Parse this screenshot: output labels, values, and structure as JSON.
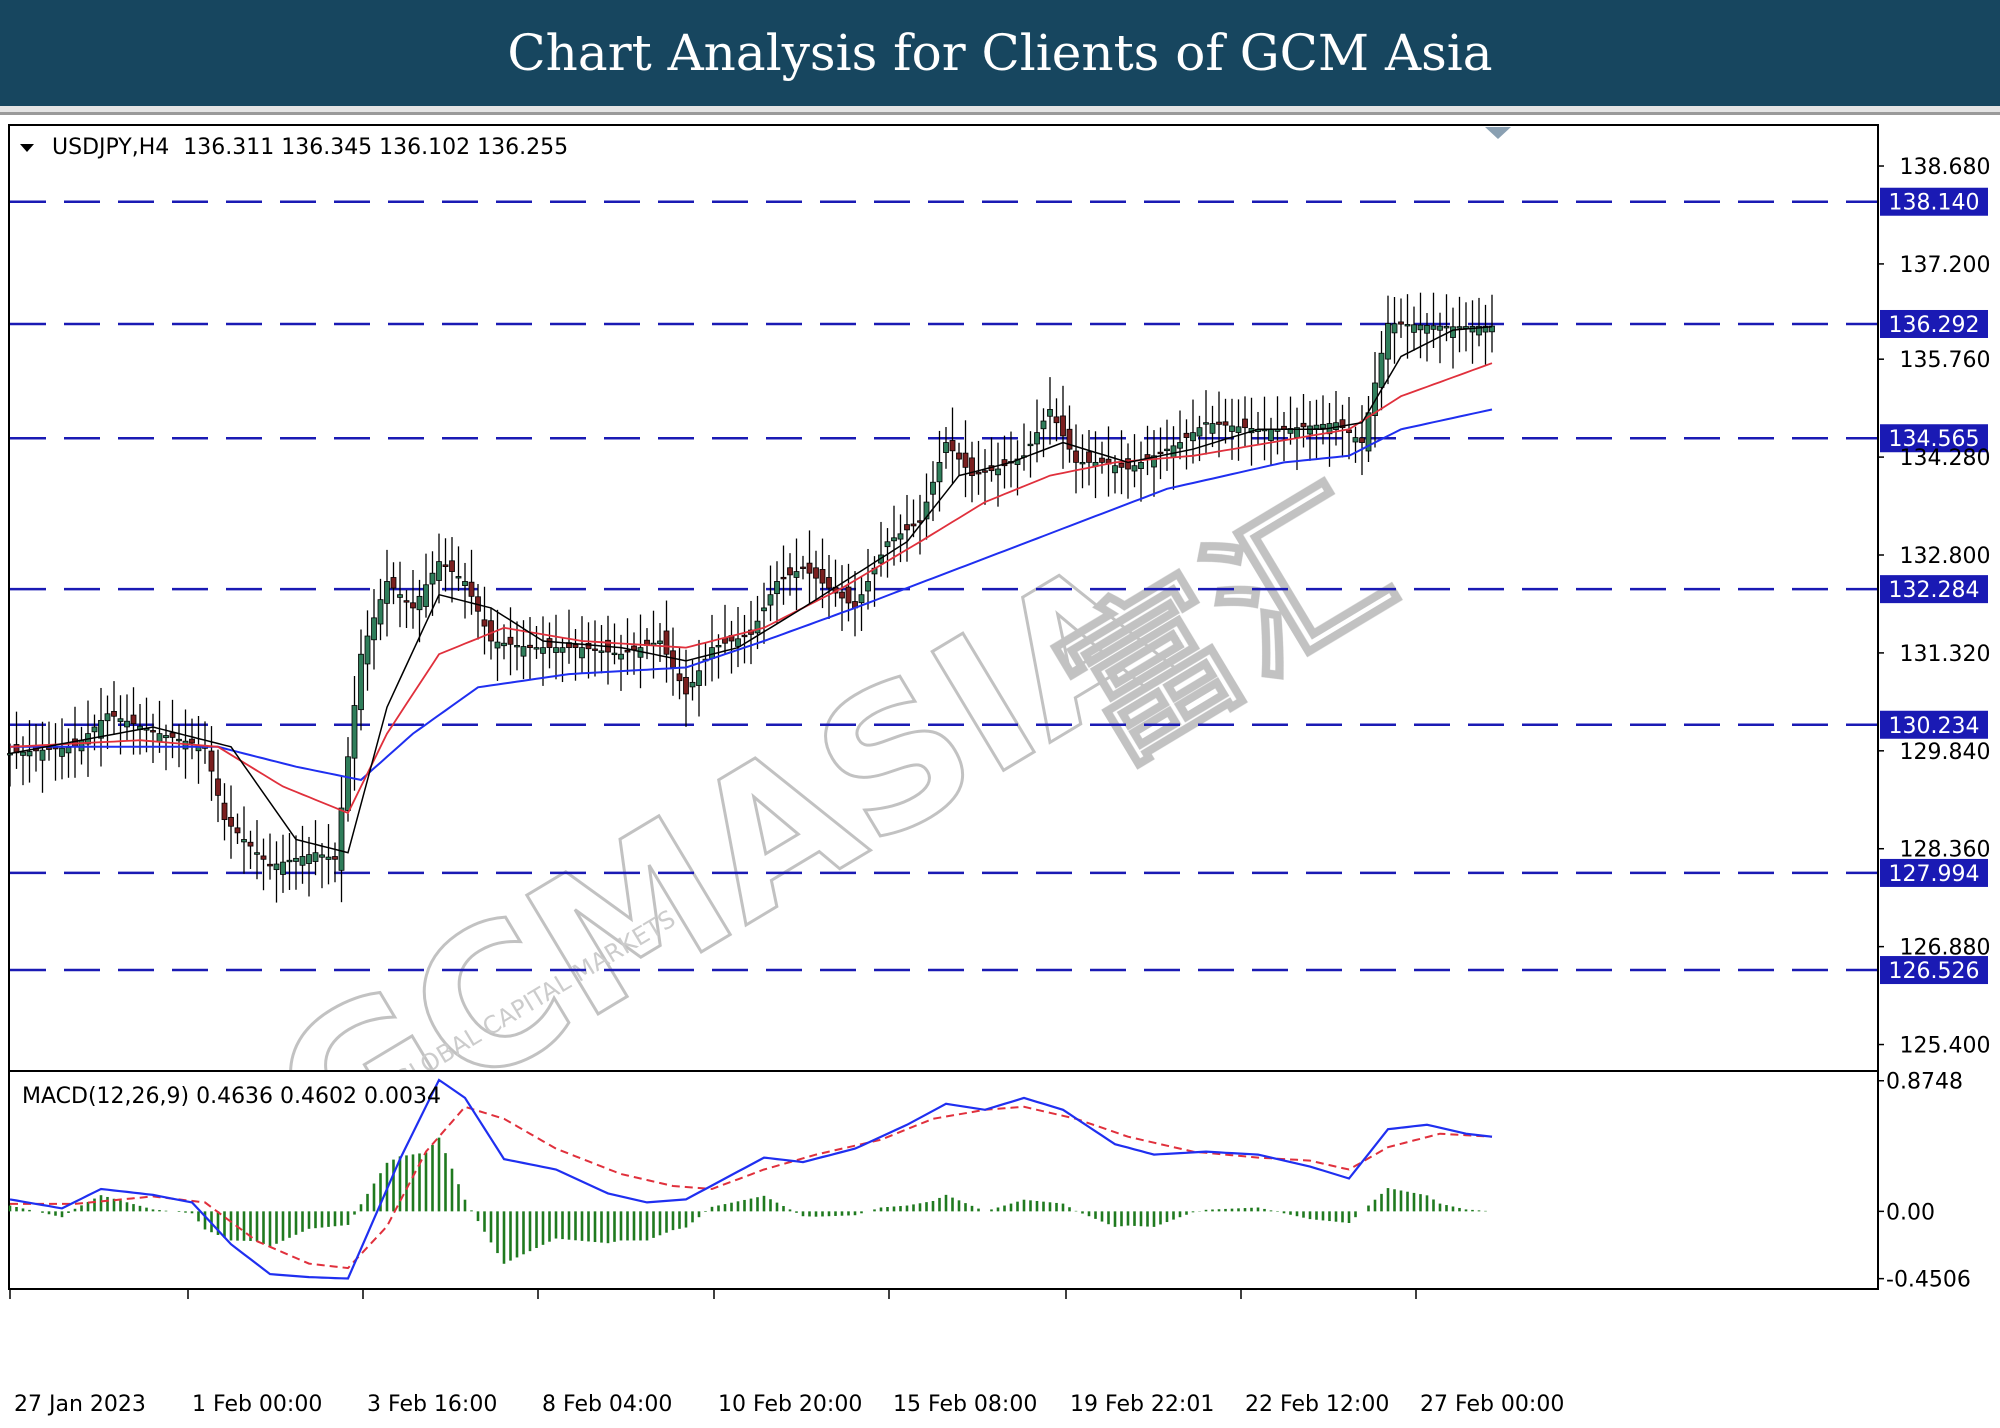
{
  "header": {
    "title": "Chart Analysis for Clients of GCM Asia"
  },
  "watermark": {
    "brand": "GCMASIA",
    "brand_cn": "富汇",
    "tagline": "GLOBAL CAPITAL MARKETS"
  },
  "chart_data": [
    {
      "type": "candlestick",
      "symbol_line": "USDJPY,H4  136.311 136.345 136.102 136.255",
      "ylim": [
        125.0,
        139.3
      ],
      "y_ticks": [
        138.68,
        137.2,
        135.76,
        134.28,
        132.8,
        131.32,
        129.84,
        128.36,
        126.88,
        125.4
      ],
      "y_tick_labels": [
        "138.680",
        "137.200",
        "135.760",
        "134.280",
        "132.800",
        "131.320",
        "129.840",
        "128.360",
        "126.880",
        "125.400"
      ],
      "x_tick_labels": [
        "27 Jan 2023",
        "1 Feb 00:00",
        "3 Feb 16:00",
        "8 Feb 04:00",
        "10 Feb 20:00",
        "15 Feb 08:00",
        "19 Feb 22:01",
        "22 Feb 12:00",
        "27 Feb 00:00"
      ],
      "horizontal_levels": [
        {
          "value": 138.14,
          "label": "138.140"
        },
        {
          "value": 136.292,
          "label": "136.292"
        },
        {
          "value": 134.565,
          "label": "134.565"
        },
        {
          "value": 132.284,
          "label": "132.284"
        },
        {
          "value": 130.234,
          "label": "130.234"
        },
        {
          "value": 127.994,
          "label": "127.994"
        },
        {
          "value": 126.526,
          "label": "126.526"
        }
      ],
      "price_keypoints": [
        [
          0,
          129.8
        ],
        [
          10,
          129.9
        ],
        [
          15,
          130.4
        ],
        [
          23,
          130.1
        ],
        [
          30,
          129.9
        ],
        [
          33,
          128.8
        ],
        [
          40,
          128.1
        ],
        [
          47,
          128.3
        ],
        [
          50,
          128.2
        ],
        [
          54,
          131.3
        ],
        [
          58,
          132.4
        ],
        [
          62,
          132.0
        ],
        [
          66,
          132.7
        ],
        [
          70,
          132.4
        ],
        [
          74,
          131.5
        ],
        [
          80,
          131.4
        ],
        [
          88,
          131.4
        ],
        [
          94,
          131.3
        ],
        [
          100,
          131.5
        ],
        [
          104,
          130.7
        ],
        [
          108,
          131.4
        ],
        [
          114,
          131.6
        ],
        [
          118,
          132.4
        ],
        [
          122,
          132.6
        ],
        [
          126,
          132.3
        ],
        [
          130,
          132.0
        ],
        [
          135,
          133.0
        ],
        [
          140,
          133.3
        ],
        [
          144,
          134.5
        ],
        [
          148,
          134.0
        ],
        [
          152,
          134.1
        ],
        [
          156,
          134.3
        ],
        [
          160,
          135.0
        ],
        [
          164,
          134.2
        ],
        [
          168,
          134.2
        ],
        [
          172,
          134.1
        ],
        [
          180,
          134.5
        ],
        [
          184,
          134.8
        ],
        [
          192,
          134.7
        ],
        [
          196,
          134.7
        ],
        [
          204,
          134.8
        ],
        [
          208,
          134.5
        ],
        [
          212,
          136.3
        ],
        [
          222,
          136.25
        ],
        [
          228,
          136.26
        ]
      ],
      "sma_fast_keypoints": [
        [
          0,
          129.8
        ],
        [
          22,
          130.2
        ],
        [
          34,
          129.9
        ],
        [
          44,
          128.5
        ],
        [
          52,
          128.3
        ],
        [
          58,
          130.5
        ],
        [
          66,
          132.2
        ],
        [
          74,
          132.0
        ],
        [
          82,
          131.5
        ],
        [
          94,
          131.4
        ],
        [
          104,
          131.2
        ],
        [
          112,
          131.4
        ],
        [
          122,
          132.0
        ],
        [
          130,
          132.5
        ],
        [
          138,
          133.0
        ],
        [
          146,
          134.0
        ],
        [
          154,
          134.2
        ],
        [
          162,
          134.5
        ],
        [
          172,
          134.2
        ],
        [
          182,
          134.4
        ],
        [
          192,
          134.7
        ],
        [
          202,
          134.7
        ],
        [
          208,
          134.8
        ],
        [
          214,
          135.8
        ],
        [
          222,
          136.2
        ],
        [
          228,
          136.25
        ]
      ],
      "sma_mid_keypoints": [
        [
          0,
          129.9
        ],
        [
          20,
          130.0
        ],
        [
          32,
          129.9
        ],
        [
          42,
          129.3
        ],
        [
          52,
          128.9
        ],
        [
          58,
          130.1
        ],
        [
          66,
          131.3
        ],
        [
          76,
          131.7
        ],
        [
          88,
          131.5
        ],
        [
          104,
          131.4
        ],
        [
          116,
          131.7
        ],
        [
          128,
          132.3
        ],
        [
          140,
          133.0
        ],
        [
          150,
          133.6
        ],
        [
          160,
          134.0
        ],
        [
          170,
          134.2
        ],
        [
          182,
          134.3
        ],
        [
          194,
          134.5
        ],
        [
          206,
          134.7
        ],
        [
          214,
          135.2
        ],
        [
          228,
          135.7
        ]
      ],
      "sma_slow_keypoints": [
        [
          0,
          129.9
        ],
        [
          20,
          129.9
        ],
        [
          32,
          129.9
        ],
        [
          44,
          129.6
        ],
        [
          54,
          129.4
        ],
        [
          62,
          130.1
        ],
        [
          72,
          130.8
        ],
        [
          86,
          131.0
        ],
        [
          104,
          131.1
        ],
        [
          116,
          131.5
        ],
        [
          130,
          132.0
        ],
        [
          146,
          132.6
        ],
        [
          162,
          133.2
        ],
        [
          178,
          133.8
        ],
        [
          196,
          134.2
        ],
        [
          206,
          134.3
        ],
        [
          214,
          134.7
        ],
        [
          228,
          135.0
        ]
      ],
      "line_colors": {
        "sma_fast": "#000000",
        "sma_mid": "#e0303c",
        "sma_slow": "#1f2ff0"
      },
      "bull_color": "#2f7d5a",
      "bear_color": "#7a1f1f",
      "level_color": "#1a1ab4",
      "grid": false
    },
    {
      "type": "macd",
      "label": "MACD(12,26,9) 0.4636 0.4602 0.0034",
      "ylim": [
        -0.52,
        0.94
      ],
      "y_ticks": [
        0.8748,
        0.0,
        -0.4506
      ],
      "y_tick_labels": [
        "0.8748",
        "0.00",
        "-0.4506"
      ],
      "macd_keypoints": [
        [
          0,
          0.08
        ],
        [
          8,
          0.02
        ],
        [
          14,
          0.15
        ],
        [
          22,
          0.11
        ],
        [
          28,
          0.06
        ],
        [
          34,
          -0.22
        ],
        [
          40,
          -0.42
        ],
        [
          46,
          -0.44
        ],
        [
          52,
          -0.45
        ],
        [
          56,
          -0.05
        ],
        [
          60,
          0.35
        ],
        [
          66,
          0.88
        ],
        [
          70,
          0.76
        ],
        [
          76,
          0.35
        ],
        [
          84,
          0.28
        ],
        [
          92,
          0.12
        ],
        [
          98,
          0.06
        ],
        [
          104,
          0.08
        ],
        [
          110,
          0.22
        ],
        [
          116,
          0.36
        ],
        [
          122,
          0.33
        ],
        [
          130,
          0.42
        ],
        [
          138,
          0.58
        ],
        [
          144,
          0.72
        ],
        [
          150,
          0.68
        ],
        [
          156,
          0.76
        ],
        [
          162,
          0.68
        ],
        [
          170,
          0.45
        ],
        [
          176,
          0.38
        ],
        [
          184,
          0.4
        ],
        [
          192,
          0.38
        ],
        [
          200,
          0.3
        ],
        [
          206,
          0.22
        ],
        [
          212,
          0.55
        ],
        [
          218,
          0.58
        ],
        [
          224,
          0.52
        ],
        [
          228,
          0.5
        ]
      ],
      "signal_keypoints": [
        [
          0,
          0.05
        ],
        [
          10,
          0.05
        ],
        [
          22,
          0.1
        ],
        [
          30,
          0.06
        ],
        [
          38,
          -0.2
        ],
        [
          46,
          -0.35
        ],
        [
          52,
          -0.38
        ],
        [
          58,
          -0.1
        ],
        [
          64,
          0.4
        ],
        [
          70,
          0.7
        ],
        [
          76,
          0.62
        ],
        [
          84,
          0.42
        ],
        [
          94,
          0.25
        ],
        [
          102,
          0.17
        ],
        [
          108,
          0.15
        ],
        [
          116,
          0.28
        ],
        [
          124,
          0.38
        ],
        [
          134,
          0.48
        ],
        [
          142,
          0.62
        ],
        [
          150,
          0.68
        ],
        [
          156,
          0.7
        ],
        [
          164,
          0.62
        ],
        [
          172,
          0.5
        ],
        [
          182,
          0.4
        ],
        [
          192,
          0.36
        ],
        [
          200,
          0.34
        ],
        [
          206,
          0.28
        ],
        [
          212,
          0.43
        ],
        [
          220,
          0.52
        ],
        [
          228,
          0.5
        ]
      ],
      "macd_color": "#1f2ff0",
      "signal_color": "#e0303c",
      "histogram_color": "#1f7a1f"
    }
  ]
}
